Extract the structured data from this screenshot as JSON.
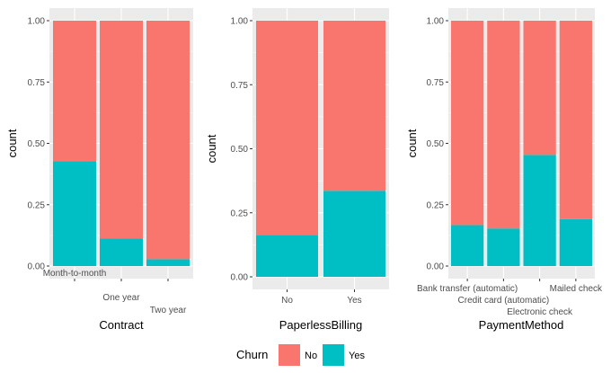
{
  "chart_data": [
    {
      "type": "bar",
      "stacked": true,
      "xlabel": "Contract",
      "ylabel": "count",
      "ylim": [
        0,
        1
      ],
      "yticks": [
        "0.00",
        "0.25",
        "0.50",
        "0.75",
        "1.00"
      ],
      "categories": [
        "Month-to-month",
        "One year",
        "Two year"
      ],
      "series": [
        {
          "name": "Yes",
          "values": [
            0.427,
            0.113,
            0.028
          ]
        },
        {
          "name": "No",
          "values": [
            0.573,
            0.887,
            0.972
          ]
        }
      ]
    },
    {
      "type": "bar",
      "stacked": true,
      "xlabel": "PaperlessBilling",
      "ylabel": "count",
      "ylim": [
        0,
        1
      ],
      "yticks": [
        "0.00",
        "0.25",
        "0.50",
        "0.75",
        "1.00"
      ],
      "categories": [
        "No",
        "Yes"
      ],
      "series": [
        {
          "name": "Yes",
          "values": [
            0.164,
            0.336
          ]
        },
        {
          "name": "No",
          "values": [
            0.836,
            0.664
          ]
        }
      ]
    },
    {
      "type": "bar",
      "stacked": true,
      "xlabel": "PaymentMethod",
      "ylabel": "count",
      "ylim": [
        0,
        1
      ],
      "yticks": [
        "0.00",
        "0.25",
        "0.50",
        "0.75",
        "1.00"
      ],
      "categories": [
        "Bank transfer (automatic)",
        "Credit card (automatic)",
        "Electronic check",
        "Mailed check"
      ],
      "series": [
        {
          "name": "Yes",
          "values": [
            0.167,
            0.153,
            0.453,
            0.191
          ]
        },
        {
          "name": "No",
          "values": [
            0.833,
            0.847,
            0.547,
            0.809
          ]
        }
      ]
    }
  ],
  "legend": {
    "title": "Churn",
    "position": "bottom",
    "entries": [
      {
        "label": "No",
        "color": "#F8766D"
      },
      {
        "label": "Yes",
        "color": "#00BFC4"
      }
    ]
  },
  "colors": {
    "No": "#F8766D",
    "Yes": "#00BFC4",
    "panel": "#EBEBEB",
    "grid": "#FFFFFF"
  }
}
